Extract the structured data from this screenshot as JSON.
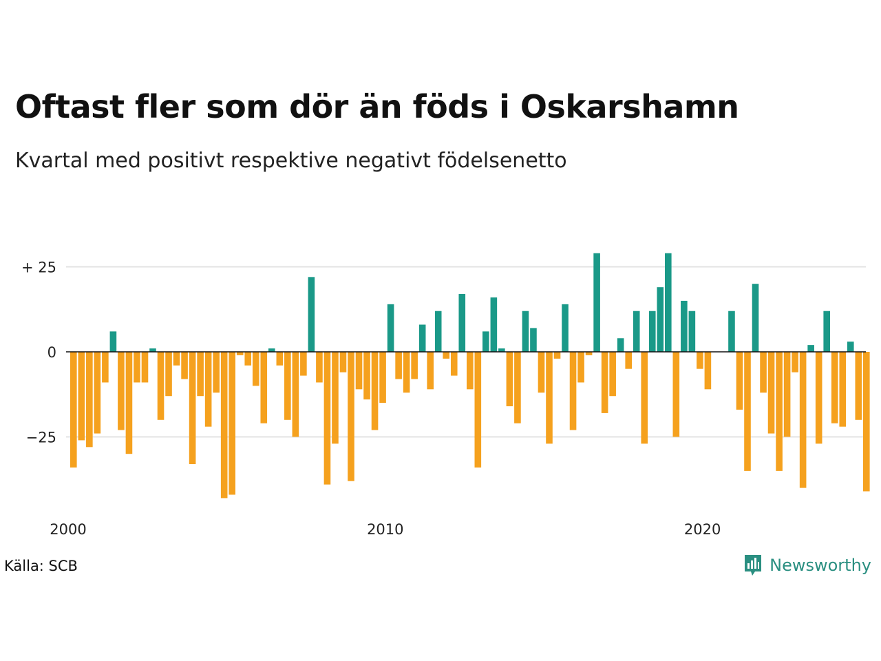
{
  "title": "Oftast fler som dör än föds i Oskarshamn",
  "subtitle": "Kvartal med positivt respektive negativt födelsenetto",
  "source": "Källa: SCB",
  "logo": {
    "text": "Newsworthy",
    "icon": "newsworthy-chart-icon"
  },
  "colors": {
    "positive": "#1a9988",
    "negative": "#f5a11e",
    "grid": "#e3e3e3",
    "axis": "#111111"
  },
  "chart_data": {
    "type": "bar",
    "title": "Oftast fler som dör än föds i Oskarshamn",
    "subtitle": "Kvartal med positivt respektive negativt födelsenetto",
    "xlabel": "",
    "ylabel": "",
    "y_ticks": [
      {
        "value": 25,
        "label": "+ 25"
      },
      {
        "value": 0,
        "label": "0"
      },
      {
        "value": -25,
        "label": "−25"
      }
    ],
    "x_ticks": [
      {
        "year": 2000,
        "label": "2000"
      },
      {
        "year": 2010,
        "label": "2010"
      },
      {
        "year": 2020,
        "label": "2020"
      }
    ],
    "ylim": [
      -45,
      35
    ],
    "start_year": 2000,
    "quarters_per_year": 4,
    "grid": true,
    "values": [
      -34,
      -26,
      -28,
      -24,
      -9,
      6,
      -23,
      -30,
      -9,
      -9,
      1,
      -20,
      -13,
      -4,
      -8,
      -33,
      -13,
      -22,
      -12,
      -43,
      -42,
      -1,
      -4,
      -10,
      -21,
      1,
      -4,
      -20,
      -25,
      -7,
      22,
      -9,
      -39,
      -27,
      -6,
      -38,
      -11,
      -14,
      -23,
      -15,
      14,
      -8,
      -12,
      -8,
      8,
      -11,
      12,
      -2,
      -7,
      17,
      -11,
      -34,
      6,
      16,
      1,
      -16,
      -21,
      12,
      7,
      -12,
      -27,
      -2,
      14,
      -23,
      -9,
      -1,
      29,
      -18,
      -13,
      4,
      -5,
      12,
      -27,
      12,
      19,
      29,
      -25,
      15,
      12,
      -5,
      -11,
      0,
      0,
      12,
      -17,
      -35,
      20,
      -12,
      -24,
      -35,
      -25,
      -6,
      -40,
      2,
      -27,
      12,
      -21,
      -22,
      3,
      -20,
      -41
    ]
  }
}
